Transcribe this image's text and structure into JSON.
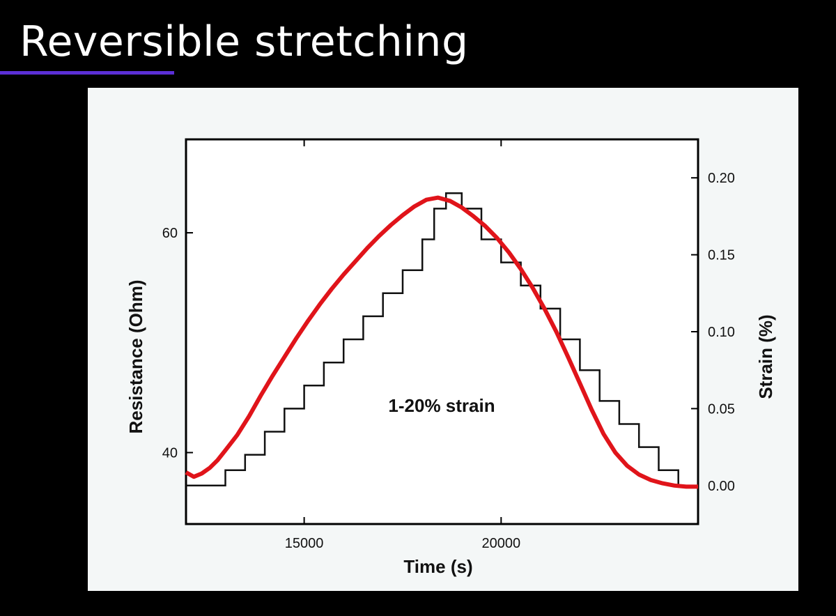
{
  "slide": {
    "title": "Reversible stretching",
    "accent_color": "#5b2fd6"
  },
  "chart_data": {
    "type": "line",
    "xlabel": "Time (s)",
    "ylabel": "Resistance (Ohm)",
    "y2label": "Strain (%)",
    "annotation": "1-20% strain",
    "xlim": [
      12000,
      25000
    ],
    "ylim": [
      33.5,
      68.5
    ],
    "y2lim": [
      -0.025,
      0.225
    ],
    "xticks": [
      15000,
      20000
    ],
    "xtick_labels": [
      "15000",
      "20000"
    ],
    "yticks": [
      40,
      60
    ],
    "ytick_labels": [
      "40",
      "60"
    ],
    "y2ticks": [
      0,
      0.05,
      0.1,
      0.15,
      0.2
    ],
    "y2tick_labels": [
      "0.00",
      "0.05",
      "0.10",
      "0.15",
      "0.20"
    ],
    "grid": false,
    "series": [
      {
        "axis": "left",
        "color": "#e0141a",
        "x": [
          12000,
          12200,
          12400,
          12600,
          12800,
          13000,
          13300,
          13600,
          13900,
          14200,
          14500,
          14800,
          15100,
          15400,
          15700,
          16000,
          16300,
          16600,
          16900,
          17200,
          17500,
          17800,
          18100,
          18400,
          18700,
          19000,
          19300,
          19600,
          19900,
          20200,
          20500,
          20800,
          21100,
          21400,
          21700,
          22000,
          22300,
          22600,
          22900,
          23200,
          23500,
          23800,
          24100,
          24400,
          24700,
          25000
        ],
        "y": [
          38.2,
          37.8,
          38.1,
          38.6,
          39.3,
          40.2,
          41.6,
          43.3,
          45.2,
          47.0,
          48.7,
          50.4,
          52.0,
          53.5,
          54.9,
          56.2,
          57.4,
          58.6,
          59.7,
          60.7,
          61.6,
          62.4,
          63.0,
          63.2,
          62.9,
          62.3,
          61.5,
          60.6,
          59.5,
          58.2,
          56.7,
          55.0,
          53.1,
          51.0,
          48.7,
          46.3,
          43.9,
          41.7,
          40.0,
          38.8,
          38.0,
          37.5,
          37.2,
          37.0,
          36.9,
          36.9
        ]
      },
      {
        "axis": "right",
        "color": "#111111",
        "x": [
          12000,
          12600,
          13000,
          13500,
          14000,
          14500,
          15000,
          15500,
          16000,
          16500,
          17000,
          17500,
          18000,
          18300,
          18600,
          19000,
          19500,
          20000,
          20500,
          21000,
          21500,
          22000,
          22500,
          23000,
          23500,
          24000,
          24500,
          25000
        ],
        "y": [
          0.0,
          0.0,
          0.01,
          0.02,
          0.035,
          0.05,
          0.065,
          0.08,
          0.095,
          0.11,
          0.125,
          0.14,
          0.16,
          0.18,
          0.19,
          0.18,
          0.16,
          0.145,
          0.13,
          0.115,
          0.095,
          0.075,
          0.055,
          0.04,
          0.025,
          0.01,
          0.0,
          0.0
        ]
      }
    ]
  }
}
